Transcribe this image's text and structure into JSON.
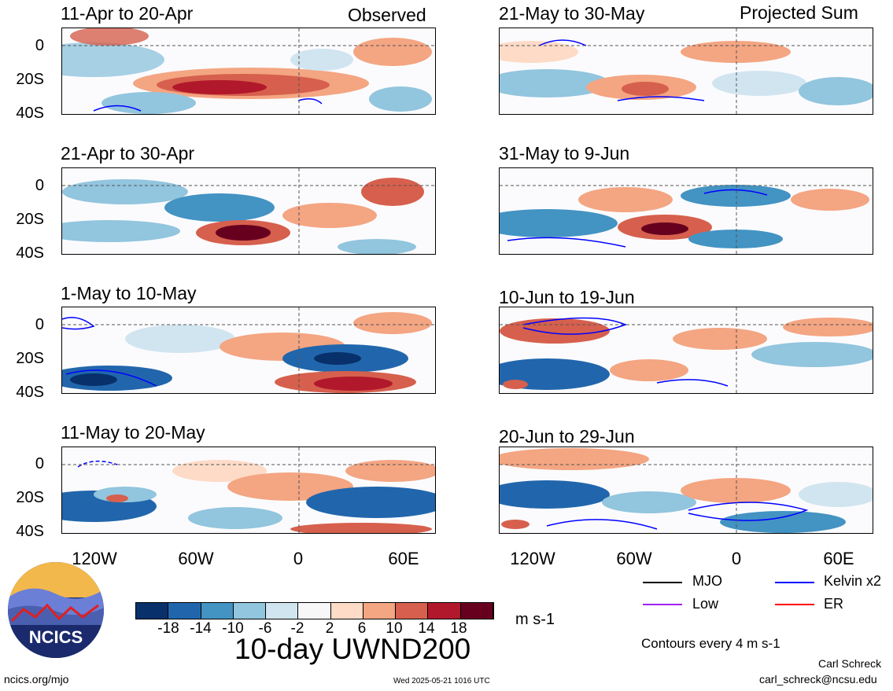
{
  "header": {
    "left_label": "Observed",
    "right_label": "Projected Sum"
  },
  "panels_left": [
    {
      "title": "11-Apr to 20-Apr"
    },
    {
      "title": "21-Apr to 30-Apr"
    },
    {
      "title": "1-May to 10-May"
    },
    {
      "title": "11-May to 20-May"
    }
  ],
  "panels_right": [
    {
      "title": "21-May to 30-May"
    },
    {
      "title": "31-May to 9-Jun"
    },
    {
      "title": "10-Jun to 19-Jun"
    },
    {
      "title": "20-Jun to 29-Jun"
    }
  ],
  "y_ticks": [
    "0",
    "20S",
    "40S"
  ],
  "x_ticks": [
    "120W",
    "60W",
    "0",
    "60E"
  ],
  "colorbar": {
    "colors": [
      "#08306b",
      "#2166ac",
      "#4393c3",
      "#92c5de",
      "#d1e5f0",
      "#f7f7f7",
      "#fddbc7",
      "#f4a582",
      "#d6604d",
      "#b2182b",
      "#67001f"
    ],
    "tick_labels": [
      "-18",
      "-14",
      "-10",
      "-6",
      "-2",
      "2",
      "6",
      "10",
      "14",
      "18"
    ],
    "units": "m s-1"
  },
  "main_title": "10-day UWND200",
  "legend": {
    "items": [
      {
        "label": "MJO",
        "color": "#000000"
      },
      {
        "label": "Kelvin x2",
        "color": "#0000ff"
      },
      {
        "label": "Low",
        "color": "#a020f0"
      },
      {
        "label": "ER",
        "color": "#ff0000"
      }
    ],
    "contours_note": "Contours every 4 m s-1"
  },
  "logo": {
    "text": "NCICS"
  },
  "footer": {
    "url": "ncics.org/mjo",
    "timestamp": "Wed 2025-05-21 1016 UTC",
    "author": "Carl Schreck",
    "email": "carl_schreck@ncsu.edu"
  }
}
